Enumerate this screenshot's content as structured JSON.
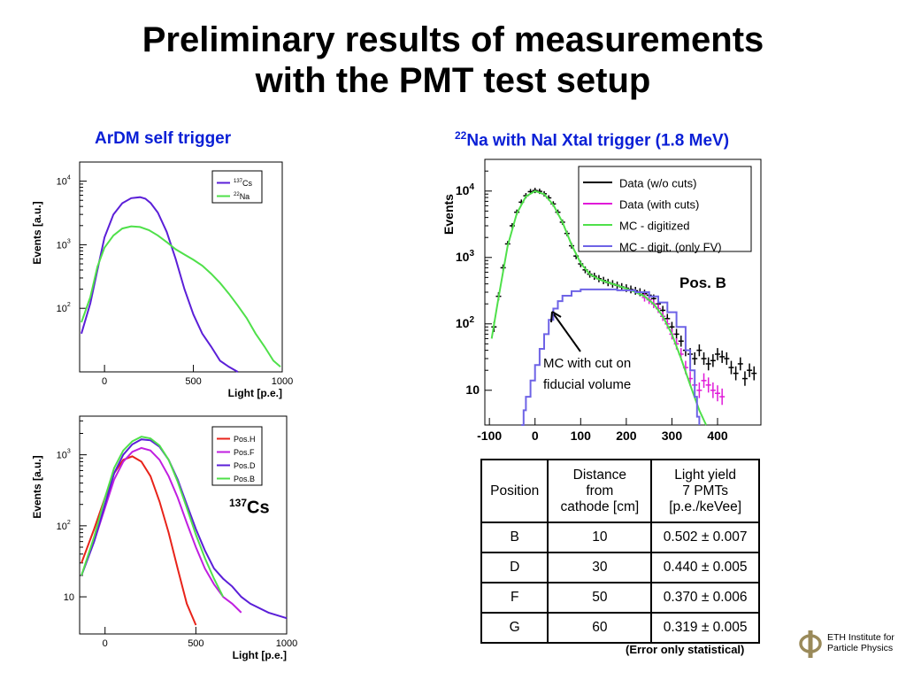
{
  "title_line1": "Preliminary results of measurements",
  "title_line2": "with the PMT test setup",
  "subtitle_left": "ArDM self trigger",
  "subtitle_right_sup": "22",
  "subtitle_right": "Na with NaI Xtal trigger (1.8 MeV)",
  "cs_label_sup": "137",
  "cs_label": "Cs",
  "chart_data": [
    {
      "type": "line",
      "xlabel": "Light [p.e.]",
      "ylabel": "Events [a.u.]",
      "xlim": [
        -140,
        1000
      ],
      "ylim": [
        10,
        20000
      ],
      "yscale": "log",
      "xticks": [
        0,
        500,
        1000
      ],
      "xtick_labels": [
        "0",
        "500",
        "1000"
      ],
      "yticks": [
        100,
        1000,
        10000
      ],
      "ytick_labels": [
        "10",
        "10",
        "10"
      ],
      "ytick_exps": [
        "2",
        "3",
        "4"
      ],
      "legend_position": "top-right",
      "series": [
        {
          "name_sup": "137",
          "name": "Cs",
          "color": "#5b1fd8",
          "x": [
            -130,
            -80,
            -40,
            0,
            50,
            100,
            150,
            200,
            230,
            260,
            300,
            350,
            400,
            450,
            500,
            550,
            600,
            650,
            700,
            750
          ],
          "y": [
            40,
            120,
            400,
            1300,
            3000,
            4500,
            5400,
            5600,
            5300,
            4500,
            3200,
            1600,
            600,
            200,
            80,
            40,
            25,
            15,
            12,
            10
          ]
        },
        {
          "name_sup": "22",
          "name": "Na",
          "color": "#4fe04a",
          "x": [
            -130,
            -80,
            -40,
            0,
            50,
            100,
            150,
            200,
            250,
            300,
            350,
            400,
            450,
            500,
            550,
            600,
            650,
            700,
            750,
            800,
            850,
            900,
            950,
            990
          ],
          "y": [
            60,
            150,
            450,
            900,
            1400,
            1800,
            1950,
            1900,
            1700,
            1400,
            1100,
            850,
            700,
            580,
            470,
            350,
            250,
            170,
            110,
            70,
            40,
            25,
            15,
            12
          ]
        }
      ]
    },
    {
      "type": "line",
      "xlabel": "Light [p.e.]",
      "ylabel": "Events [a.u.]",
      "xlim": [
        -140,
        1000
      ],
      "ylim": [
        3,
        3500
      ],
      "yscale": "log",
      "xticks": [
        0,
        500,
        1000
      ],
      "xtick_labels": [
        "0",
        "500",
        "1000"
      ],
      "yticks": [
        10,
        100,
        1000
      ],
      "ytick_labels": [
        "10",
        "10",
        "10"
      ],
      "ytick_exps": [
        "",
        "2",
        "3"
      ],
      "legend_position": "top-right",
      "series": [
        {
          "name": "Pos.H",
          "color": "#e8231a",
          "x": [
            -130,
            -60,
            0,
            50,
            100,
            150,
            200,
            250,
            300,
            350,
            400,
            450,
            500
          ],
          "y": [
            30,
            90,
            250,
            550,
            850,
            950,
            800,
            500,
            220,
            80,
            25,
            8,
            4
          ]
        },
        {
          "name": "Pos.F",
          "color": "#c01fe0",
          "x": [
            -130,
            -60,
            0,
            50,
            100,
            150,
            200,
            250,
            300,
            350,
            400,
            450,
            500,
            550,
            600,
            650,
            700,
            750
          ],
          "y": [
            20,
            60,
            180,
            450,
            800,
            1100,
            1250,
            1150,
            850,
            500,
            250,
            110,
            50,
            25,
            15,
            10,
            8,
            6
          ]
        },
        {
          "name": "Pos.D",
          "color": "#5b1fd8",
          "x": [
            -130,
            -60,
            0,
            50,
            100,
            150,
            200,
            250,
            300,
            350,
            400,
            450,
            500,
            550,
            600,
            650,
            700,
            750,
            800,
            900,
            1000
          ],
          "y": [
            20,
            60,
            200,
            550,
            1000,
            1400,
            1650,
            1600,
            1300,
            850,
            450,
            200,
            90,
            45,
            25,
            18,
            14,
            10,
            8,
            6,
            5
          ]
        },
        {
          "name": "Pos.B",
          "color": "#4fe04a",
          "x": [
            -130,
            -60,
            0,
            50,
            100,
            150,
            200,
            250,
            300,
            350,
            400,
            450,
            500,
            550,
            600,
            650
          ],
          "y": [
            20,
            70,
            250,
            650,
            1150,
            1550,
            1800,
            1700,
            1350,
            850,
            420,
            180,
            75,
            35,
            18,
            10
          ]
        }
      ]
    },
    {
      "type": "line",
      "xlabel": "",
      "ylabel": "Events",
      "xlim": [
        -110,
        495
      ],
      "ylim": [
        3,
        30000
      ],
      "yscale": "log",
      "xticks": [
        -100,
        0,
        100,
        200,
        300,
        400
      ],
      "xtick_labels": [
        "-100",
        "0",
        "100",
        "200",
        "300",
        "400"
      ],
      "yticks": [
        10,
        100,
        1000,
        10000
      ],
      "ytick_labels": [
        "10",
        "10",
        "10",
        "10"
      ],
      "ytick_exps": [
        "",
        "2",
        "3",
        "4"
      ],
      "legend_position": "top-right",
      "annotation_pos": "Pos. B",
      "annotation_text_1": "MC with cut on",
      "annotation_text_2": "fiducial volume",
      "series": [
        {
          "name": "Data (w/o cuts)",
          "color": "#000000",
          "style": "errorbar",
          "x": [
            -90,
            -80,
            -70,
            -60,
            -50,
            -40,
            -30,
            -20,
            -10,
            0,
            10,
            20,
            30,
            40,
            50,
            60,
            70,
            80,
            90,
            100,
            110,
            120,
            130,
            140,
            150,
            160,
            170,
            180,
            190,
            200,
            210,
            220,
            230,
            240,
            250,
            260,
            270,
            280,
            290,
            300,
            310,
            320,
            330,
            340,
            350,
            360,
            370,
            380,
            390,
            400,
            410,
            420,
            430,
            440,
            450,
            460,
            470,
            480
          ],
          "y": [
            90,
            260,
            700,
            1600,
            3000,
            4800,
            6800,
            8500,
            9800,
            10200,
            9900,
            9100,
            7900,
            6400,
            4800,
            3400,
            2300,
            1500,
            1050,
            800,
            650,
            560,
            520,
            480,
            450,
            420,
            400,
            380,
            360,
            345,
            330,
            315,
            300,
            285,
            270,
            240,
            200,
            160,
            120,
            90,
            70,
            55,
            40,
            35,
            30,
            40,
            30,
            25,
            28,
            35,
            32,
            30,
            22,
            18,
            25,
            15,
            20,
            18
          ]
        },
        {
          "name": "Data (with cuts)",
          "color": "#e01ad8",
          "style": "errorbar",
          "x": [
            240,
            250,
            260,
            270,
            280,
            290,
            300,
            310,
            320,
            330,
            340,
            350,
            360,
            370,
            380,
            390,
            400,
            410
          ],
          "y": [
            250,
            230,
            200,
            170,
            130,
            100,
            70,
            50,
            35,
            22,
            15,
            12,
            10,
            14,
            12,
            10,
            9,
            8
          ]
        },
        {
          "name": "MC - digitized",
          "color": "#4fe04a",
          "style": "line",
          "x": [
            -95,
            -80,
            -60,
            -40,
            -20,
            0,
            20,
            40,
            60,
            80,
            100,
            120,
            140,
            160,
            180,
            200,
            220,
            240,
            260,
            280,
            300,
            320,
            340,
            360,
            375
          ],
          "y": [
            60,
            250,
            1500,
            4600,
            8300,
            10000,
            9000,
            6200,
            3400,
            1550,
            820,
            560,
            470,
            420,
            380,
            340,
            300,
            260,
            200,
            130,
            70,
            30,
            12,
            5,
            3
          ]
        },
        {
          "name": "MC - digit. (only FV)",
          "color": "#6e63e6",
          "style": "step",
          "x": [
            -30,
            -25,
            -20,
            -10,
            0,
            10,
            20,
            30,
            40,
            50,
            60,
            80,
            100,
            140,
            180,
            220,
            250,
            270,
            290,
            310,
            330,
            340,
            350,
            355,
            360
          ],
          "y": [
            3,
            5,
            8,
            14,
            24,
            42,
            70,
            115,
            170,
            220,
            265,
            310,
            330,
            330,
            320,
            300,
            260,
            210,
            150,
            90,
            40,
            20,
            8,
            4,
            3
          ]
        }
      ]
    }
  ],
  "table": {
    "headers": [
      [
        "Position"
      ],
      [
        "Distance",
        "from",
        "cathode [cm]"
      ],
      [
        "Light yield",
        "7 PMTs",
        "[p.e./keVee]"
      ]
    ],
    "rows": [
      [
        "B",
        "10",
        "0.502 ± 0.007"
      ],
      [
        "D",
        "30",
        "0.440 ± 0.005"
      ],
      [
        "F",
        "50",
        "0.370 ± 0.006"
      ],
      [
        "G",
        "60",
        "0.319 ± 0.005"
      ]
    ]
  },
  "table_note": "(Error only statistical)",
  "logo_line1": "ETH Institute for",
  "logo_line2": "Particle Physics"
}
